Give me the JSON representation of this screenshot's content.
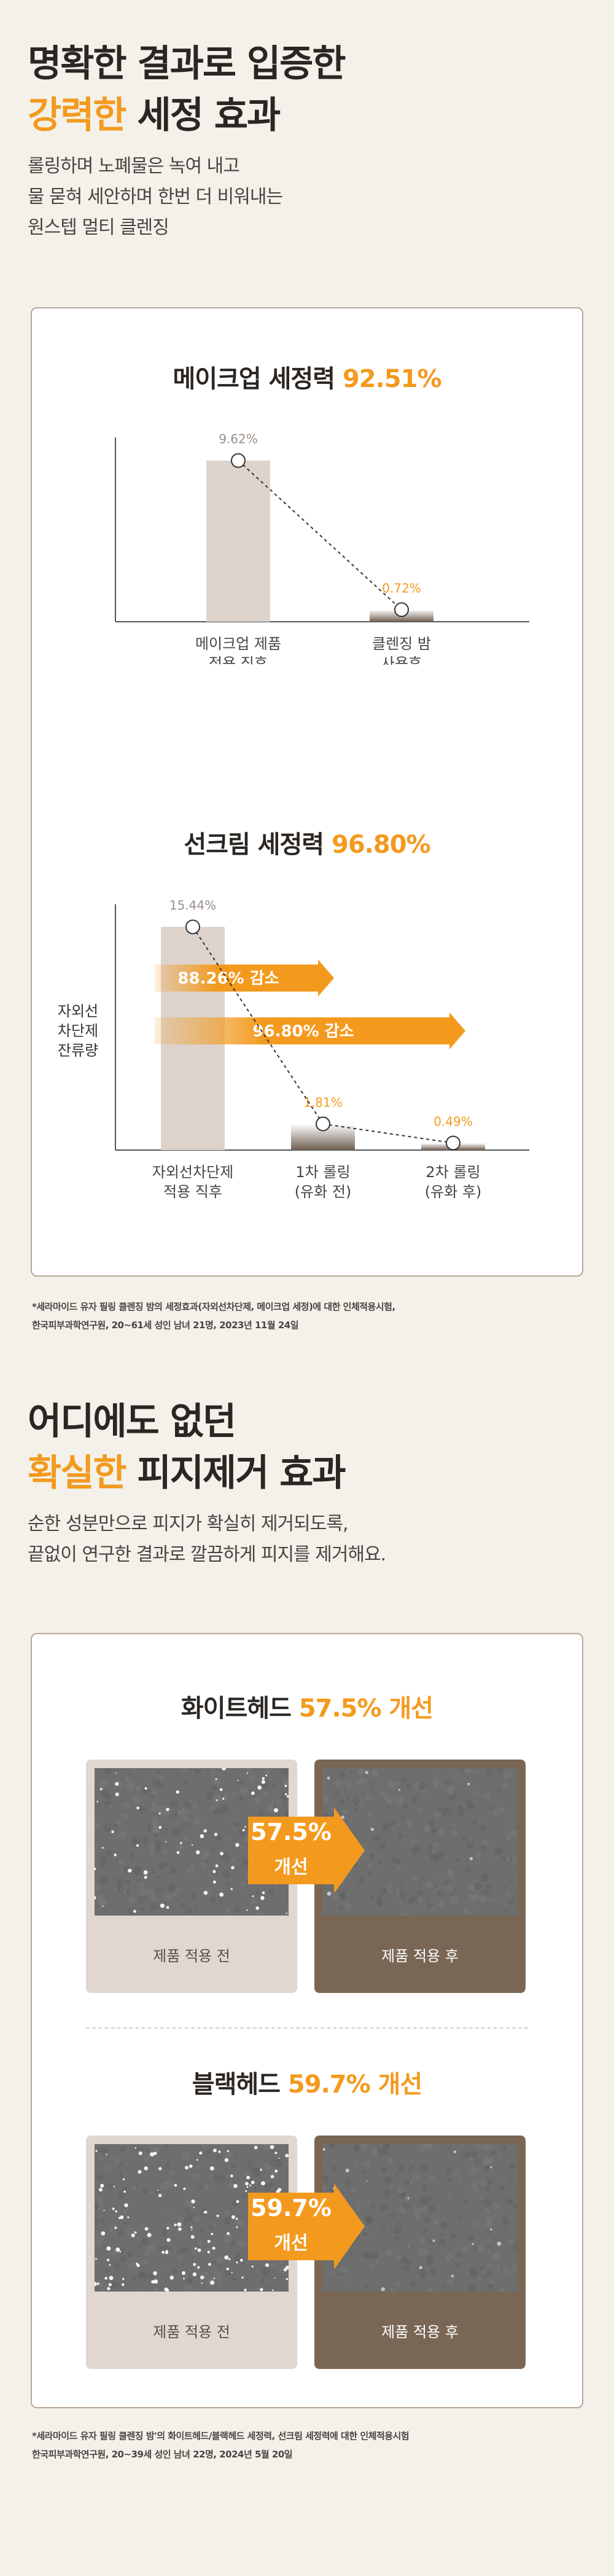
{
  "section1": {
    "title_line1": "명확한 결과로 입증한",
    "title_accent": "강력한",
    "title_rest": " 세정 효과",
    "desc": [
      "롤링하며 노폐물은 녹여 내고",
      "물 묻혀 세안하며 한번 더 비워내는",
      "원스텝 멀티 클렌징"
    ]
  },
  "makeup_chart": {
    "title_prefix": "메이크업 세정력 ",
    "title_value": "92.51%"
  },
  "sun_chart": {
    "title_prefix": "선크림 세정력 ",
    "title_value": "96.80%",
    "ylabel": [
      "자외선",
      "차단제",
      "잔류량"
    ],
    "arrow1": "88.26% 감소",
    "arrow2": "96.80% 감소"
  },
  "chart_data": [
    {
      "type": "bar",
      "title": "메이크업 세정력 92.51%",
      "categories": [
        "메이크업 제품\n적용 직후",
        "클렌징 밤\n사용후"
      ],
      "values": [
        9.62,
        0.72
      ],
      "value_labels": [
        "9.62%",
        "0.72%"
      ],
      "ylim": [
        0,
        11
      ]
    },
    {
      "type": "bar",
      "title": "선크림 세정력 96.80%",
      "ylabel": "자외선 차단제 잔류량",
      "categories": [
        "자외선차단제\n적용 직후",
        "1차 롤링\n(유화 전)",
        "2차 롤링\n(유화 후)"
      ],
      "values": [
        15.44,
        1.81,
        0.49
      ],
      "value_labels": [
        "15.44%",
        "1.81%",
        "0.49%"
      ],
      "ylim": [
        0,
        17
      ]
    }
  ],
  "footnote1": [
    "*세라마이드 유자 필링 클렌징 밤의 세정효과(자외선차단제, 메이크업 세정)에 대한 인체적용시험,",
    "한국피부과학연구원, 20~61세 성인 남녀 21명, 2023년 11월 24일"
  ],
  "section2": {
    "title_line1": "어디에도 없던",
    "title_accent": "확실한",
    "title_rest": " 피지제거 효과",
    "desc": [
      "순한 성분만으로 피지가 확실히 제거되도록,",
      "끝없이 연구한 결과로 깔끔하게 피지를 제거해요."
    ]
  },
  "whitehead": {
    "title_prefix": "화이트헤드 ",
    "title_value": "57.5% 개선",
    "badge_value": "57.5%",
    "badge_label": "개선",
    "before_label": "제품 적용 전",
    "after_label": "제품 적용 후"
  },
  "blackhead": {
    "title_prefix": "블랙헤드 ",
    "title_value": "59.7% 개선",
    "badge_value": "59.7%",
    "badge_label": "개선",
    "before_label": "제품 적용 전",
    "after_label": "제품 적용 후"
  },
  "footnote2": [
    "*세라마이드 유자 필링 클렌징 밤'의 화이트헤드/블랙헤드 세정력, 선크림 세정력에 대한 인체적용시험",
    "한국피부과학연구원, 20~39세 성인 남녀 22명, 2024년 5월 20일"
  ],
  "colors": {
    "accent": "#f39a1e",
    "bar_light": "#ddd3cc",
    "bar_dark": "#6f5f52",
    "box_light": "#e2d7d0",
    "box_dark": "#7a6655"
  }
}
